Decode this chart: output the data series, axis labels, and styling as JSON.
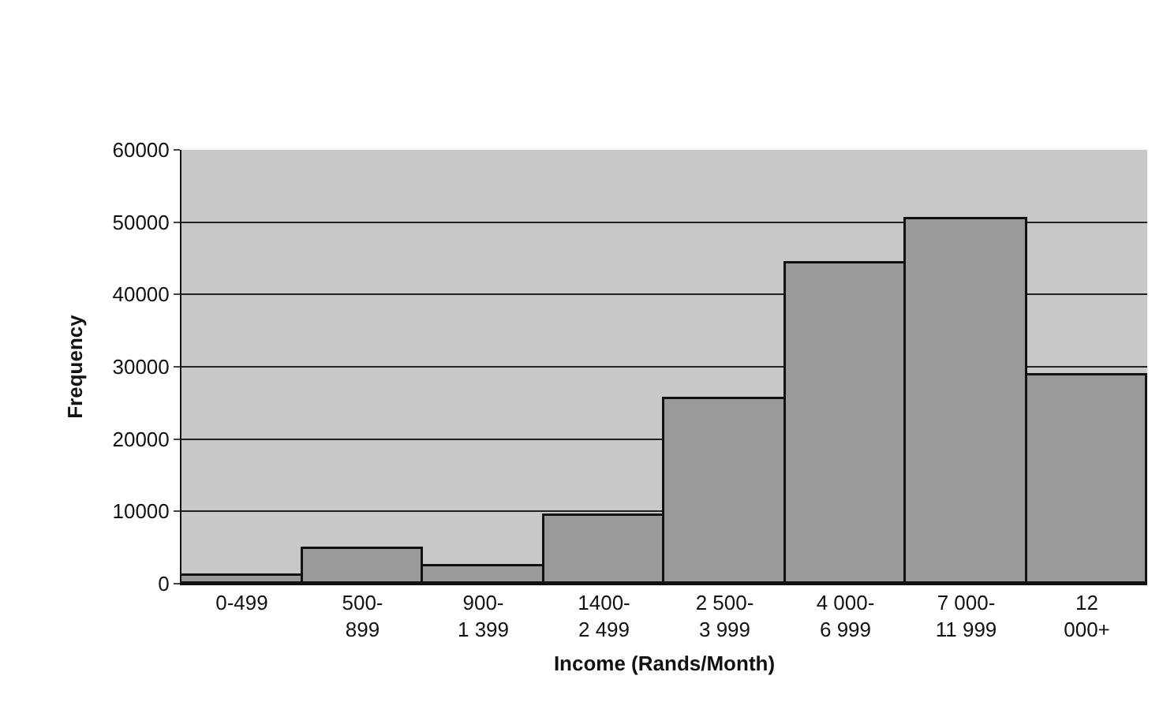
{
  "chart_data": {
    "type": "bar",
    "xlabel": "Income (Rands/Month)",
    "ylabel": "Frequency",
    "categories": [
      "0-499",
      "500-\n899",
      "900-\n1 399",
      "1400-\n2 499",
      "2 500-\n3 999",
      "4 000-\n6 999",
      "7 000-\n11 999",
      "12\n000+"
    ],
    "values": [
      1100,
      4900,
      2500,
      9400,
      25500,
      44400,
      50300,
      28800
    ],
    "color": "#9a9a9a",
    "ylim": [
      0,
      60000
    ],
    "yticks": [
      0,
      10000,
      20000,
      30000,
      40000,
      50000,
      60000
    ],
    "grid": "y"
  }
}
